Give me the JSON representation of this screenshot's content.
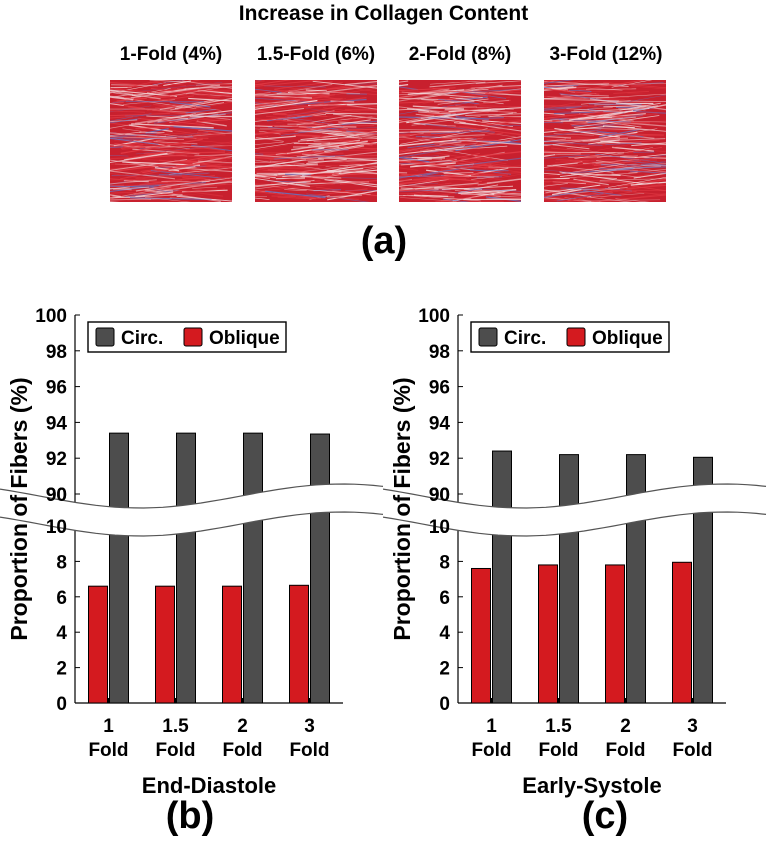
{
  "figure": {
    "top_title": "Increase in Collagen Content",
    "fold_labels": [
      "1-Fold (4%)",
      "1.5-Fold (6%)",
      "2-Fold (8%)",
      "3-Fold (12%)"
    ],
    "panel_labels": [
      "(a)",
      "(b)",
      "(c)"
    ],
    "colors": {
      "circ": "#4d4d4d",
      "oblique": "#d41a1f",
      "tile_base": "#c8202e",
      "tile_fiber": "#e23a45",
      "tile_blue": "#6b6fb8"
    }
  },
  "chart_data": [
    {
      "type": "bar",
      "xlabel": "End-Diastole",
      "ylabel": "Proportion of Fibers (%)",
      "categories": [
        [
          "1",
          "Fold"
        ],
        [
          "1.5",
          "Fold"
        ],
        [
          "2",
          "Fold"
        ],
        [
          "3",
          "Fold"
        ]
      ],
      "series": [
        {
          "name": "Circ.",
          "color": "#4d4d4d",
          "values": [
            93.4,
            93.4,
            93.4,
            93.35
          ]
        },
        {
          "name": "Oblique",
          "color": "#d41a1f",
          "values": [
            6.6,
            6.6,
            6.6,
            6.65
          ]
        }
      ],
      "y_ticks_lower": [
        "0",
        "2",
        "4",
        "6",
        "8",
        "10"
      ],
      "y_ticks_upper": [
        "90",
        "92",
        "94",
        "96",
        "98",
        "100"
      ],
      "ylim_lower": [
        0,
        10
      ],
      "ylim_upper": [
        90,
        100
      ],
      "axis_break": true,
      "legend_position": "top"
    },
    {
      "type": "bar",
      "xlabel": "Early-Systole",
      "ylabel": "Proportion of Fibers (%)",
      "categories": [
        [
          "1",
          "Fold"
        ],
        [
          "1.5",
          "Fold"
        ],
        [
          "2",
          "Fold"
        ],
        [
          "3",
          "Fold"
        ]
      ],
      "series": [
        {
          "name": "Circ.",
          "color": "#4d4d4d",
          "values": [
            92.4,
            92.2,
            92.2,
            92.05
          ]
        },
        {
          "name": "Oblique",
          "color": "#d41a1f",
          "values": [
            7.6,
            7.8,
            7.8,
            7.95
          ]
        }
      ],
      "y_ticks_lower": [
        "0",
        "2",
        "4",
        "6",
        "8",
        "10"
      ],
      "y_ticks_upper": [
        "90",
        "92",
        "94",
        "96",
        "98",
        "100"
      ],
      "ylim_lower": [
        0,
        10
      ],
      "ylim_upper": [
        90,
        100
      ],
      "axis_break": true,
      "legend_position": "top"
    }
  ]
}
